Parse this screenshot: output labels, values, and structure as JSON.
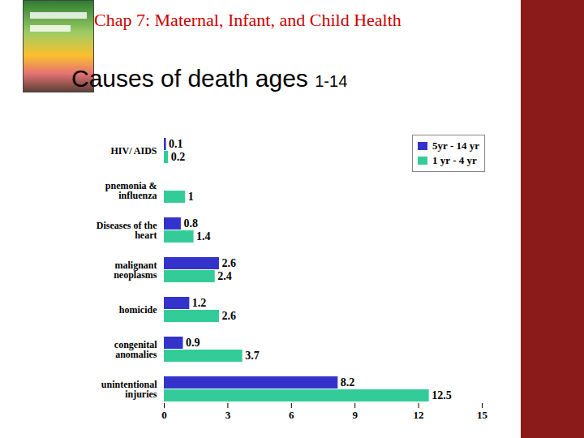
{
  "slide_title": "Chap 7: Maternal, Infant, and Child Health",
  "chart_data": {
    "type": "bar",
    "title": "Causes of death ages 1-14",
    "orientation": "horizontal",
    "categories": [
      "HIV/ AIDS",
      "pnemonia & influenza",
      "Diseases of the heart",
      "malignant neoplasms",
      "homicide",
      "congenital anomalies",
      "unintentional injuries"
    ],
    "series": [
      {
        "name": "5yr - 14 yr",
        "color": "#3333cc",
        "values": [
          0.1,
          null,
          0.8,
          2.6,
          1.2,
          0.9,
          8.2
        ]
      },
      {
        "name": "1 yr - 4 yr",
        "color": "#33cc99",
        "values": [
          0.2,
          1,
          1.4,
          2.4,
          2.6,
          3.7,
          12.5
        ]
      }
    ],
    "xlim": [
      0,
      15
    ],
    "xticks": [
      0,
      3,
      6,
      9,
      12,
      15
    ],
    "data_labels": true,
    "legend": "top-right",
    "grid": false
  }
}
